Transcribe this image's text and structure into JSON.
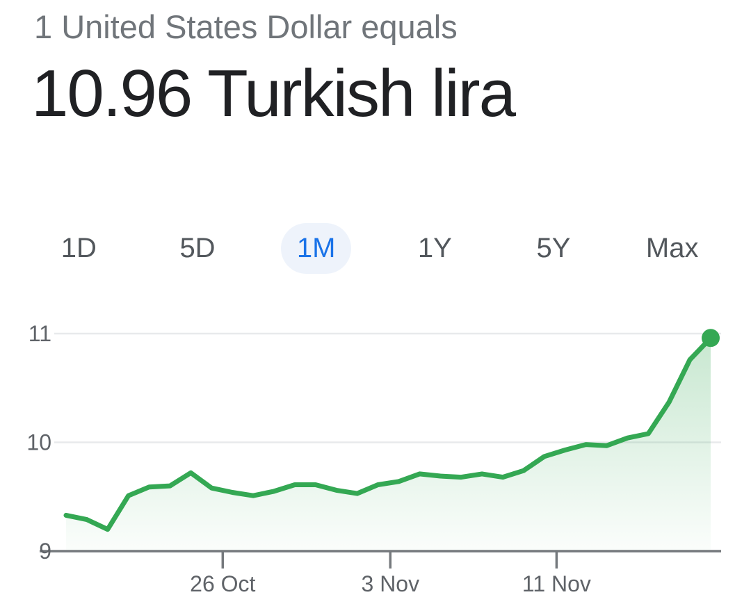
{
  "header": {
    "rate_label": "1 United States Dollar equals",
    "rate_value": "10.96 Turkish lira"
  },
  "range_tabs": [
    {
      "label": "1D",
      "selected": false
    },
    {
      "label": "5D",
      "selected": false
    },
    {
      "label": "1M",
      "selected": true
    },
    {
      "label": "1Y",
      "selected": false
    },
    {
      "label": "5Y",
      "selected": false
    },
    {
      "label": "Max",
      "selected": false
    }
  ],
  "colors": {
    "line_green": "#34a853",
    "selected_tab_text": "#1a73e8",
    "selected_tab_bg": "#eef3fb",
    "tab_text_gray": "#52575c",
    "axis_gray": "#75797d",
    "gridline_gray": "#e8eaec",
    "tick_label_gray": "#5f6368",
    "header_gray": "#70757a",
    "value_black": "#202124"
  },
  "chart_data": {
    "type": "area",
    "title": "",
    "xlabel": "",
    "ylabel": "",
    "values": [
      9.33,
      9.29,
      9.2,
      9.51,
      9.59,
      9.6,
      9.72,
      9.58,
      9.54,
      9.51,
      9.55,
      9.61,
      9.61,
      9.56,
      9.53,
      9.61,
      9.64,
      9.71,
      9.69,
      9.68,
      9.71,
      9.68,
      9.74,
      9.87,
      9.93,
      9.98,
      9.97,
      10.04,
      10.08,
      10.37,
      10.76,
      10.96
    ],
    "x_ticks": [
      {
        "label": "26 Oct",
        "pos": 0.243
      },
      {
        "label": "3 Nov",
        "pos": 0.503
      },
      {
        "label": "11 Nov",
        "pos": 0.761
      }
    ],
    "y_ticks": [
      9,
      10,
      11
    ],
    "ylim": [
      9,
      11.38
    ],
    "grid": true,
    "legend_position": "none",
    "endpoint_marker": true,
    "last_value": 10.96
  }
}
